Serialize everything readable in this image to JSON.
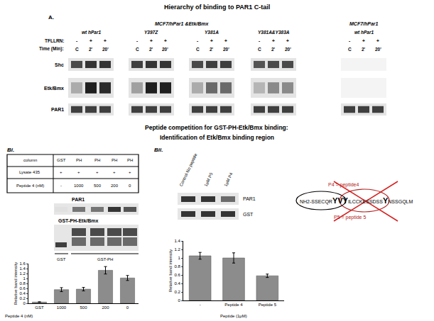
{
  "title": "Hierarchy of binding to PAR1 C-tail",
  "panel_a": {
    "label": "A.",
    "cell_lines": [
      "MCF7/hPar1 &Etk/Bmx",
      "MCF7/hPar1"
    ],
    "groups": [
      "wt hPar1",
      "Y397Z",
      "Y381A",
      "Y381A&Y383A",
      "wt hPar1"
    ],
    "row_labels": [
      "TFLLRN:",
      "Time (Min):"
    ],
    "treatment": [
      "-",
      "+",
      "+"
    ],
    "time": [
      "C",
      "2'",
      "20'"
    ],
    "blots": [
      "Shc",
      "Etk/Bmx",
      "PAR1"
    ]
  },
  "subtitle": [
    "Peptide competition for GST-PH-Etk/Bmx binding:",
    "Identification of Etk/Bmx binding region"
  ],
  "panel_bi": {
    "label": "Bi.",
    "table": {
      "rows": [
        [
          "column",
          "GST",
          "PH",
          "PH",
          "PH",
          "PH"
        ],
        [
          "Lysate 435",
          "+",
          "+",
          "+",
          "+",
          "+"
        ],
        [
          "Peptide 4 (nM)",
          "-",
          "1000",
          "500",
          "200",
          "0"
        ]
      ]
    },
    "blots": [
      "PAR1",
      "GST-PH-Etk/Bmx"
    ],
    "brackets": [
      "GST",
      "GST-PH"
    ]
  },
  "panel_bii": {
    "label": "Bii.",
    "lanes": [
      "Control-No peptide",
      "1μM P5",
      "1μM P4"
    ],
    "blots": [
      "PAR1",
      "GST"
    ],
    "sequence": {
      "parts": [
        "NH2-SSECQR",
        "YVY",
        "ILCCKESSDSS",
        "Y",
        "NSSGQLM"
      ],
      "p4": "P4 = peptide4",
      "p5": "P5 = peptide 5"
    }
  },
  "chart_data": [
    {
      "type": "bar",
      "categories": [
        "GST",
        "1000",
        "500",
        "200",
        "0"
      ],
      "values": [
        0.05,
        0.55,
        0.57,
        1.33,
        1.02
      ],
      "errors": [
        0.01,
        0.08,
        0.07,
        0.15,
        0.1
      ],
      "color": "#8c8c8c",
      "ylim": [
        0,
        1.6
      ],
      "yticks": [
        0,
        0.2,
        0.4,
        0.6,
        0.8,
        1,
        1.2,
        1.4,
        1.6
      ],
      "y_label": "Relative band intensity",
      "x_label": "Peptide 4 (nM)",
      "grid": false
    },
    {
      "type": "bar",
      "categories": [
        "-",
        "Peptide 4",
        "Peptide 5"
      ],
      "values": [
        1.05,
        1.0,
        0.58
      ],
      "errors": [
        0.08,
        0.12,
        0.04
      ],
      "color": "#8c8c8c",
      "ylim": [
        0,
        1.4
      ],
      "yticks": [
        0,
        0.2,
        0.4,
        0.6,
        0.8,
        1,
        1.2,
        1.4
      ],
      "y_label": "Relative band intensity",
      "x_label": "Peptide (1μM)",
      "grid": false
    }
  ]
}
